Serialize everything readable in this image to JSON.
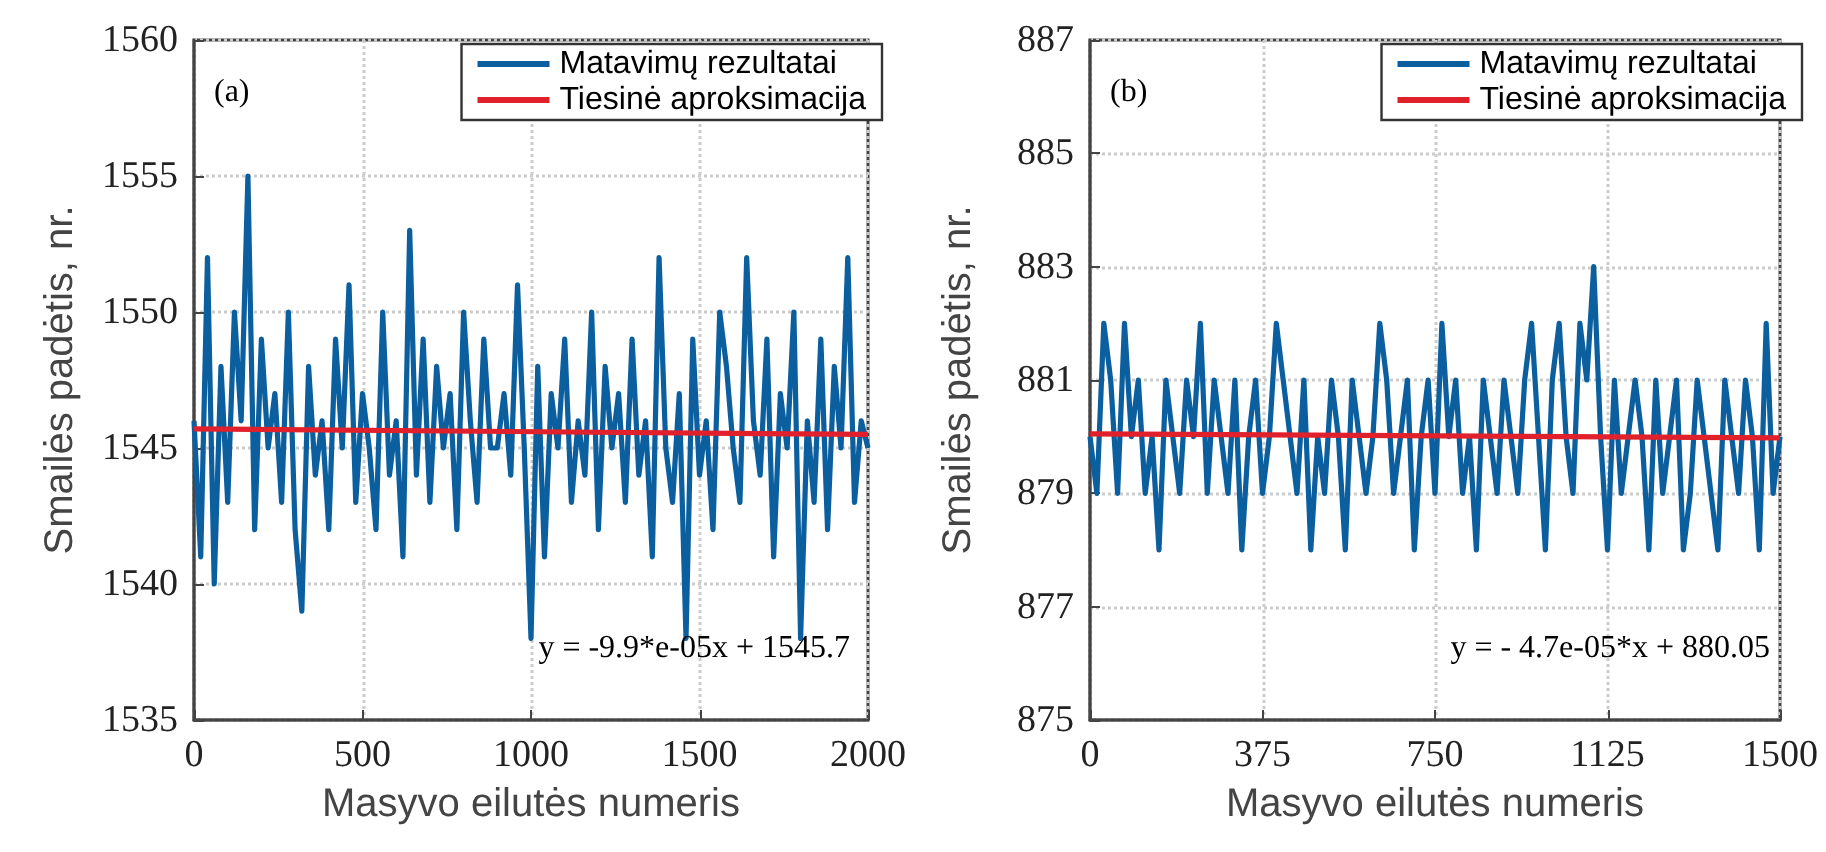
{
  "chart_data": [
    {
      "type": "line",
      "xlabel": "Masyvo eilutės numeris",
      "ylabel": "Smailės padėtis, nr.",
      "xlim": [
        0,
        2000
      ],
      "xticks": [
        0,
        500,
        1000,
        1500,
        2000
      ],
      "ylim": [
        1535,
        1560
      ],
      "yticks": [
        1535,
        1540,
        1545,
        1550,
        1555,
        1560
      ],
      "grid": true,
      "legend": "top right",
      "marker": "none",
      "line_style": "solid",
      "annotations": [
        "(a)",
        "y = -9.9*e-05x + 1545.7"
      ],
      "series": [
        {
          "name": "Matavimų rezultatai",
          "color": "#0b5f9e",
          "x": [
            0,
            20,
            40,
            60,
            80,
            100,
            120,
            140,
            160,
            180,
            200,
            220,
            240,
            260,
            280,
            300,
            320,
            340,
            360,
            380,
            400,
            420,
            440,
            460,
            480,
            500,
            520,
            540,
            560,
            580,
            600,
            620,
            640,
            660,
            680,
            700,
            720,
            740,
            760,
            780,
            800,
            820,
            840,
            860,
            880,
            900,
            920,
            940,
            960,
            980,
            1000,
            1020,
            1040,
            1060,
            1080,
            1100,
            1120,
            1140,
            1160,
            1180,
            1200,
            1220,
            1240,
            1260,
            1280,
            1300,
            1320,
            1340,
            1360,
            1380,
            1400,
            1420,
            1440,
            1460,
            1480,
            1500,
            1520,
            1540,
            1560,
            1580,
            1600,
            1620,
            1640,
            1660,
            1680,
            1700,
            1720,
            1740,
            1760,
            1780,
            1800,
            1820,
            1840,
            1860,
            1880,
            1900,
            1920,
            1940,
            1960,
            1980,
            2000
          ],
          "values": [
            1546,
            1541,
            1552,
            1540,
            1548,
            1543,
            1550,
            1546,
            1555,
            1542,
            1549,
            1545,
            1547,
            1543,
            1550,
            1542,
            1539,
            1548,
            1544,
            1546,
            1542,
            1549,
            1545,
            1551,
            1543,
            1547,
            1545,
            1542,
            1550,
            1544,
            1546,
            1541,
            1553,
            1544,
            1549,
            1543,
            1548,
            1545,
            1547,
            1542,
            1550,
            1546,
            1543,
            1549,
            1545,
            1545,
            1547,
            1544,
            1551,
            1545,
            1538,
            1548,
            1541,
            1547,
            1545,
            1549,
            1543,
            1546,
            1544,
            1550,
            1542,
            1548,
            1545,
            1547,
            1543,
            1549,
            1544,
            1546,
            1541,
            1552,
            1545,
            1543,
            1547,
            1538,
            1549,
            1544,
            1546,
            1542,
            1550,
            1548,
            1545,
            1543,
            1552,
            1546,
            1544,
            1549,
            1541,
            1547,
            1545,
            1550,
            1538,
            1546,
            1543,
            1549,
            1542,
            1548,
            1545,
            1552,
            1543,
            1546,
            1545
          ]
        },
        {
          "name": "Tiesinė aproksimacija",
          "color": "#e0202a",
          "x": [
            0,
            2000
          ],
          "values": [
            1545.7,
            1545.5
          ]
        }
      ]
    },
    {
      "type": "line",
      "xlabel": "Masyvo eilutės numeris",
      "ylabel": "Smailės padėtis, nr.",
      "xlim": [
        0,
        1500
      ],
      "xticks": [
        0,
        375,
        750,
        1125,
        1500
      ],
      "ylim": [
        875,
        887
      ],
      "yticks": [
        875,
        877,
        879,
        881,
        883,
        885,
        887
      ],
      "grid": true,
      "legend": "top right",
      "marker": "none",
      "line_style": "solid",
      "annotations": [
        "(b)",
        "y = - 4.7e-05*x + 880.05"
      ],
      "series": [
        {
          "name": "Matavimų rezultatai",
          "color": "#0b5f9e",
          "x": [
            0,
            15,
            30,
            45,
            60,
            75,
            90,
            105,
            120,
            135,
            150,
            165,
            180,
            195,
            210,
            225,
            240,
            255,
            270,
            285,
            300,
            315,
            330,
            345,
            360,
            375,
            390,
            405,
            420,
            435,
            450,
            465,
            480,
            495,
            510,
            525,
            540,
            555,
            570,
            585,
            600,
            615,
            630,
            645,
            660,
            675,
            690,
            705,
            720,
            735,
            750,
            765,
            780,
            795,
            810,
            825,
            840,
            855,
            870,
            885,
            900,
            915,
            930,
            945,
            960,
            975,
            990,
            1005,
            1020,
            1035,
            1050,
            1065,
            1080,
            1095,
            1110,
            1125,
            1140,
            1155,
            1170,
            1185,
            1200,
            1215,
            1230,
            1245,
            1260,
            1275,
            1290,
            1305,
            1320,
            1335,
            1350,
            1365,
            1380,
            1395,
            1410,
            1425,
            1440,
            1455,
            1470,
            1485,
            1500
          ],
          "values": [
            880,
            879,
            882,
            881,
            879,
            882,
            880,
            881,
            879,
            880,
            878,
            881,
            880,
            879,
            881,
            880,
            882,
            879,
            881,
            880,
            879,
            881,
            878,
            880,
            881,
            879,
            880,
            882,
            881,
            880,
            879,
            881,
            878,
            880,
            879,
            881,
            880,
            878,
            881,
            880,
            879,
            880,
            882,
            881,
            879,
            880,
            881,
            878,
            880,
            881,
            879,
            882,
            880,
            881,
            879,
            880,
            878,
            881,
            880,
            879,
            881,
            880,
            879,
            881,
            882,
            880,
            878,
            881,
            882,
            880,
            879,
            882,
            881,
            883,
            880,
            878,
            881,
            879,
            880,
            881,
            880,
            878,
            881,
            879,
            880,
            881,
            878,
            879,
            881,
            880,
            879,
            878,
            881,
            880,
            879,
            881,
            880,
            878,
            882,
            879,
            880
          ]
        },
        {
          "name": "Tiesinė aproksimacija",
          "color": "#e0202a",
          "x": [
            0,
            1500
          ],
          "values": [
            880.05,
            879.98
          ]
        }
      ]
    }
  ]
}
